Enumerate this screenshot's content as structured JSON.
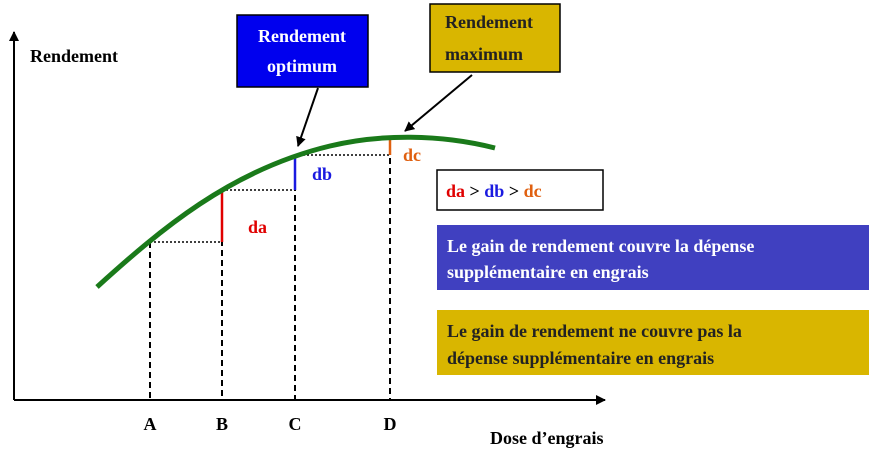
{
  "axes": {
    "y_label": "Rendement",
    "x_label": "Dose d’engrais",
    "x_points": [
      "A",
      "B",
      "C",
      "D"
    ]
  },
  "callouts": [
    {
      "lines": [
        "Rendement",
        "optimum"
      ]
    },
    {
      "lines": [
        "Rendement",
        "maximum"
      ]
    }
  ],
  "increments": [
    "da",
    "db",
    "dc"
  ],
  "relation": [
    "da",
    ">",
    "db",
    ">",
    "dc"
  ],
  "legend": [
    {
      "lines": [
        "Le gain de rendement couvre la dépense",
        "supplémentaire en engrais"
      ]
    },
    {
      "lines": [
        "Le gain de rendement ne couvre pas la",
        "dépense supplémentaire en engrais"
      ]
    }
  ]
}
